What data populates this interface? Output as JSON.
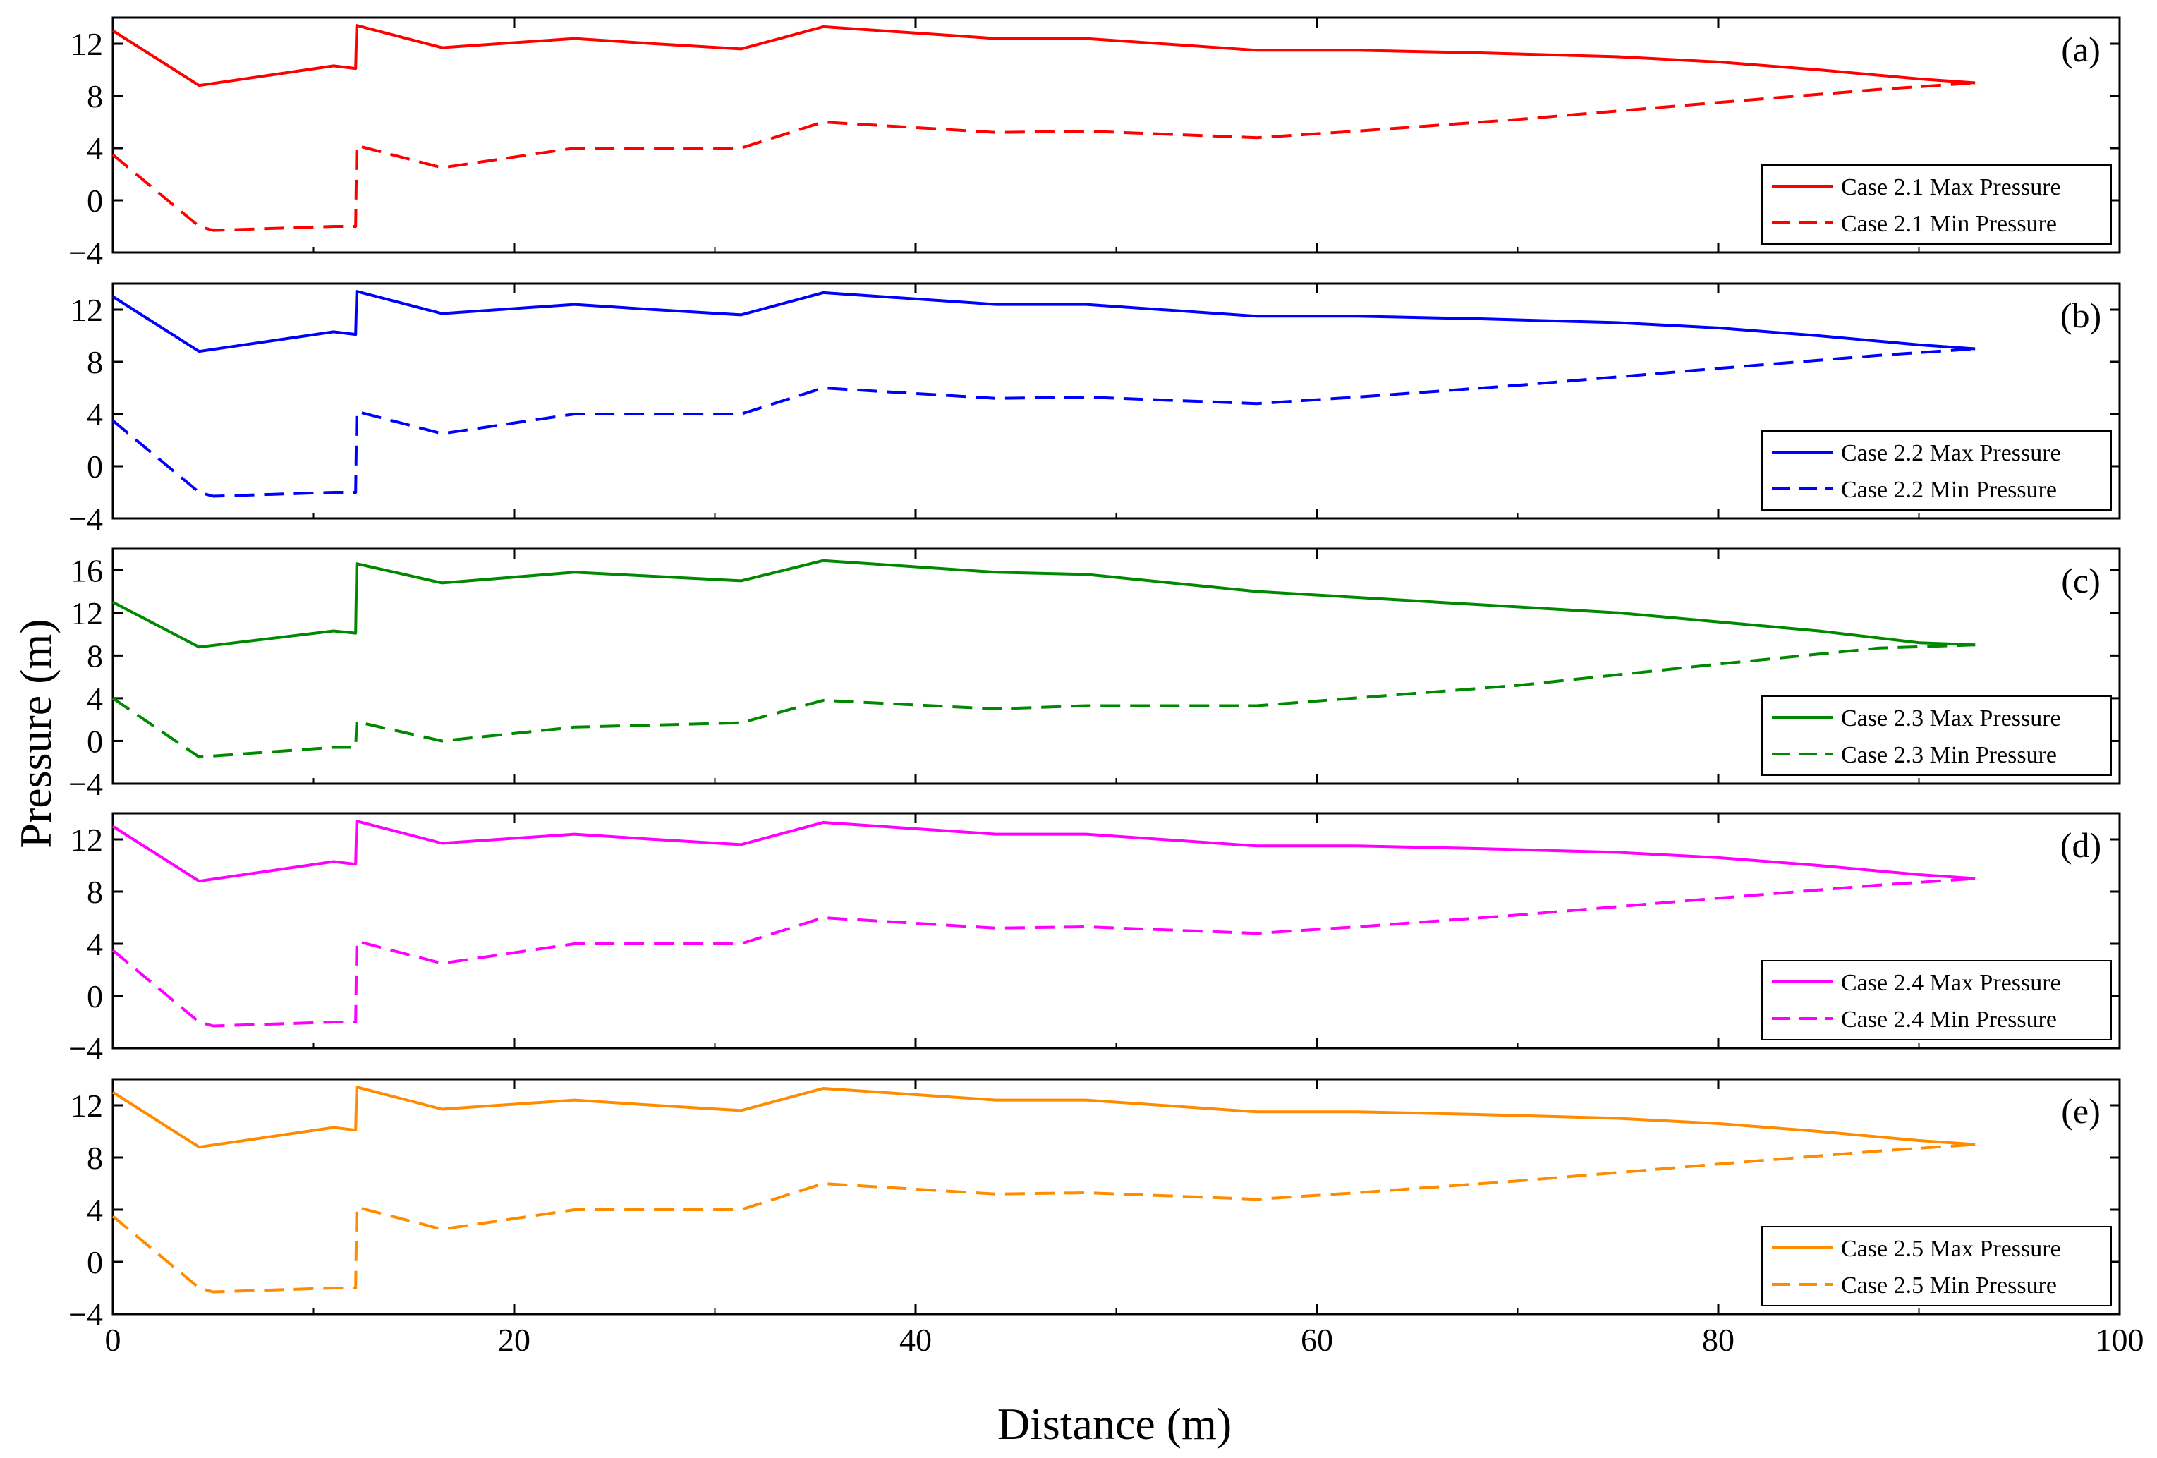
{
  "chart_data": {
    "type": "line",
    "xlabel": "Distance (m)",
    "ylabel": "Pressure (m)",
    "xlim": [
      0,
      100
    ],
    "xticks": [
      0,
      20,
      40,
      60,
      80,
      100
    ],
    "panels": [
      {
        "tag": "(a)",
        "color": "#ff0000",
        "ylim": [
          -4,
          14
        ],
        "yticks": [
          -4,
          0,
          4,
          8,
          12
        ],
        "series": [
          {
            "name": "Case 2.1 Max Pressure",
            "style": "solid",
            "x": [
              0,
              4.3,
              11,
              12.1,
              12.15,
              16.4,
              23,
              27,
              31.3,
              35.4,
              44,
              48.5,
              57,
              62,
              68,
              75,
              80,
              85,
              90,
              92.8
            ],
            "y": [
              13,
              8.8,
              10.3,
              10.1,
              13.4,
              11.7,
              12.4,
              12,
              11.6,
              13.3,
              12.4,
              12.4,
              11.5,
              11.5,
              11.3,
              11,
              10.6,
              10,
              9.3,
              9
            ]
          },
          {
            "name": "Case 2.1 Min Pressure",
            "style": "dashed",
            "x": [
              0,
              4.3,
              5,
              11,
              12.1,
              12.15,
              16.4,
              23,
              31.3,
              35.4,
              44,
              48.5,
              57,
              62,
              70,
              80,
              88,
              92.8
            ],
            "y": [
              3.5,
              -2,
              -2.3,
              -2,
              -2,
              4.2,
              2.5,
              4,
              4,
              6,
              5.2,
              5.3,
              4.8,
              5.3,
              6.2,
              7.5,
              8.5,
              9
            ]
          }
        ]
      },
      {
        "tag": "(b)",
        "color": "#0000ff",
        "ylim": [
          -4,
          14
        ],
        "yticks": [
          -4,
          0,
          4,
          8,
          12
        ],
        "series": [
          {
            "name": "Case 2.2 Max Pressure",
            "style": "solid",
            "x": [
              0,
              4.3,
              11,
              12.1,
              12.15,
              16.4,
              23,
              27,
              31.3,
              35.4,
              44,
              48.5,
              57,
              62,
              68,
              75,
              80,
              85,
              90,
              92.8
            ],
            "y": [
              13,
              8.8,
              10.3,
              10.1,
              13.4,
              11.7,
              12.4,
              12,
              11.6,
              13.3,
              12.4,
              12.4,
              11.5,
              11.5,
              11.3,
              11,
              10.6,
              10,
              9.3,
              9
            ]
          },
          {
            "name": "Case 2.2 Min Pressure",
            "style": "dashed",
            "x": [
              0,
              4.3,
              5,
              11,
              12.1,
              12.15,
              16.4,
              23,
              31.3,
              35.4,
              44,
              48.5,
              57,
              62,
              70,
              80,
              88,
              92.8
            ],
            "y": [
              3.5,
              -2,
              -2.3,
              -2,
              -2,
              4.2,
              2.5,
              4,
              4,
              6,
              5.2,
              5.3,
              4.8,
              5.3,
              6.2,
              7.5,
              8.5,
              9
            ]
          }
        ]
      },
      {
        "tag": "(c)",
        "color": "#008800",
        "ylim": [
          -4,
          18
        ],
        "yticks": [
          -4,
          0,
          4,
          8,
          12,
          16
        ],
        "series": [
          {
            "name": "Case 2.3 Max Pressure",
            "style": "solid",
            "x": [
              0,
              4.3,
              11,
              12.1,
              12.15,
              16.4,
              23,
              31.3,
              35.4,
              44,
              48.5,
              57,
              66,
              75,
              85,
              90,
              92.8
            ],
            "y": [
              13,
              8.8,
              10.3,
              10.1,
              16.6,
              14.8,
              15.8,
              15,
              16.9,
              15.8,
              15.6,
              14,
              13,
              12,
              10.3,
              9.2,
              9
            ]
          },
          {
            "name": "Case 2.3 Min Pressure",
            "style": "dashed",
            "x": [
              0,
              4.3,
              11,
              12.1,
              12.15,
              16.4,
              23,
              31.3,
              35.4,
              44,
              48.5,
              57,
              70,
              80,
              88,
              92.8
            ],
            "y": [
              4,
              -1.5,
              -0.6,
              -0.6,
              1.8,
              0,
              1.3,
              1.7,
              3.8,
              3,
              3.3,
              3.3,
              5.2,
              7.2,
              8.7,
              9
            ]
          }
        ]
      },
      {
        "tag": "(d)",
        "color": "#ff00ff",
        "ylim": [
          -4,
          14
        ],
        "yticks": [
          -4,
          0,
          4,
          8,
          12
        ],
        "series": [
          {
            "name": "Case 2.4 Max Pressure",
            "style": "solid",
            "x": [
              0,
              4.3,
              11,
              12.1,
              12.15,
              16.4,
              23,
              27,
              31.3,
              35.4,
              44,
              48.5,
              57,
              62,
              68,
              75,
              80,
              85,
              90,
              92.8
            ],
            "y": [
              13,
              8.8,
              10.3,
              10.1,
              13.4,
              11.7,
              12.4,
              12,
              11.6,
              13.3,
              12.4,
              12.4,
              11.5,
              11.5,
              11.3,
              11,
              10.6,
              10,
              9.3,
              9
            ]
          },
          {
            "name": "Case 2.4 Min Pressure",
            "style": "dashed",
            "x": [
              0,
              4.3,
              5,
              11,
              12.1,
              12.15,
              16.4,
              23,
              31.3,
              35.4,
              44,
              48.5,
              57,
              62,
              70,
              80,
              88,
              92.8
            ],
            "y": [
              3.5,
              -2,
              -2.3,
              -2,
              -2,
              4.2,
              2.5,
              4,
              4,
              6,
              5.2,
              5.3,
              4.8,
              5.3,
              6.2,
              7.5,
              8.5,
              9
            ]
          }
        ]
      },
      {
        "tag": "(e)",
        "color": "#ff8c00",
        "ylim": [
          -4,
          14
        ],
        "yticks": [
          -4,
          0,
          4,
          8,
          12
        ],
        "series": [
          {
            "name": "Case 2.5 Max Pressure",
            "style": "solid",
            "x": [
              0,
              4.3,
              11,
              12.1,
              12.15,
              16.4,
              23,
              27,
              31.3,
              35.4,
              44,
              48.5,
              57,
              62,
              68,
              75,
              80,
              85,
              90,
              92.8
            ],
            "y": [
              13,
              8.8,
              10.3,
              10.1,
              13.4,
              11.7,
              12.4,
              12,
              11.6,
              13.3,
              12.4,
              12.4,
              11.5,
              11.5,
              11.3,
              11,
              10.6,
              10,
              9.3,
              9
            ]
          },
          {
            "name": "Case 2.5 Min Pressure",
            "style": "dashed",
            "x": [
              0,
              4.3,
              5,
              11,
              12.1,
              12.15,
              16.4,
              23,
              31.3,
              35.4,
              44,
              48.5,
              57,
              62,
              70,
              80,
              88,
              92.8
            ],
            "y": [
              3.5,
              -2,
              -2.3,
              -2,
              -2,
              4.2,
              2.5,
              4,
              4,
              6,
              5.2,
              5.3,
              4.8,
              5.3,
              6.2,
              7.5,
              8.5,
              9
            ]
          }
        ]
      }
    ]
  }
}
